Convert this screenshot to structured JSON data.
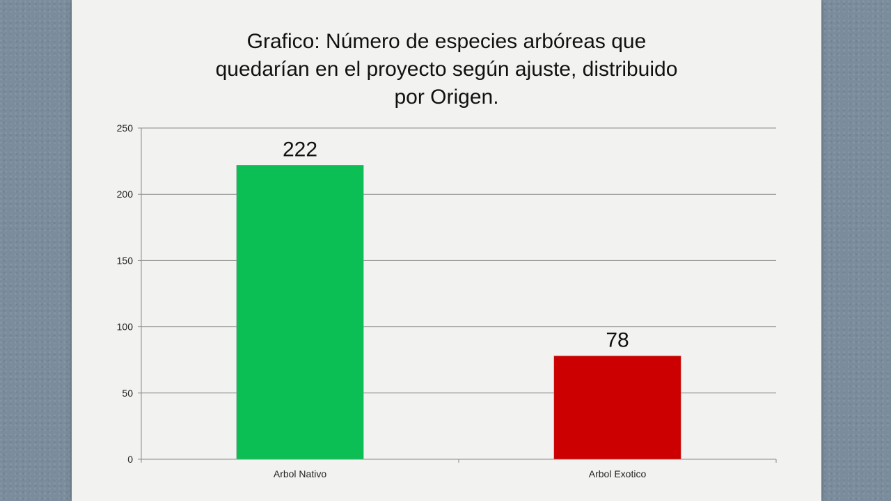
{
  "chart_data": {
    "type": "bar",
    "title": "Grafico: Número de especies arbóreas que\nquedarían en el proyecto según ajuste, distribuido\npor Origen.",
    "categories": [
      "Arbol Nativo",
      "Arbol Exotico"
    ],
    "values": [
      222,
      78
    ],
    "data_labels": [
      "222",
      "78"
    ],
    "bar_colors": [
      "#0bbf55",
      "#cc0000"
    ],
    "y_ticks": [
      "0",
      "50",
      "100",
      "150",
      "200",
      "250"
    ],
    "ylim": [
      0,
      250
    ],
    "xlabel": "",
    "ylabel": "",
    "grid": true,
    "legend": "none"
  }
}
